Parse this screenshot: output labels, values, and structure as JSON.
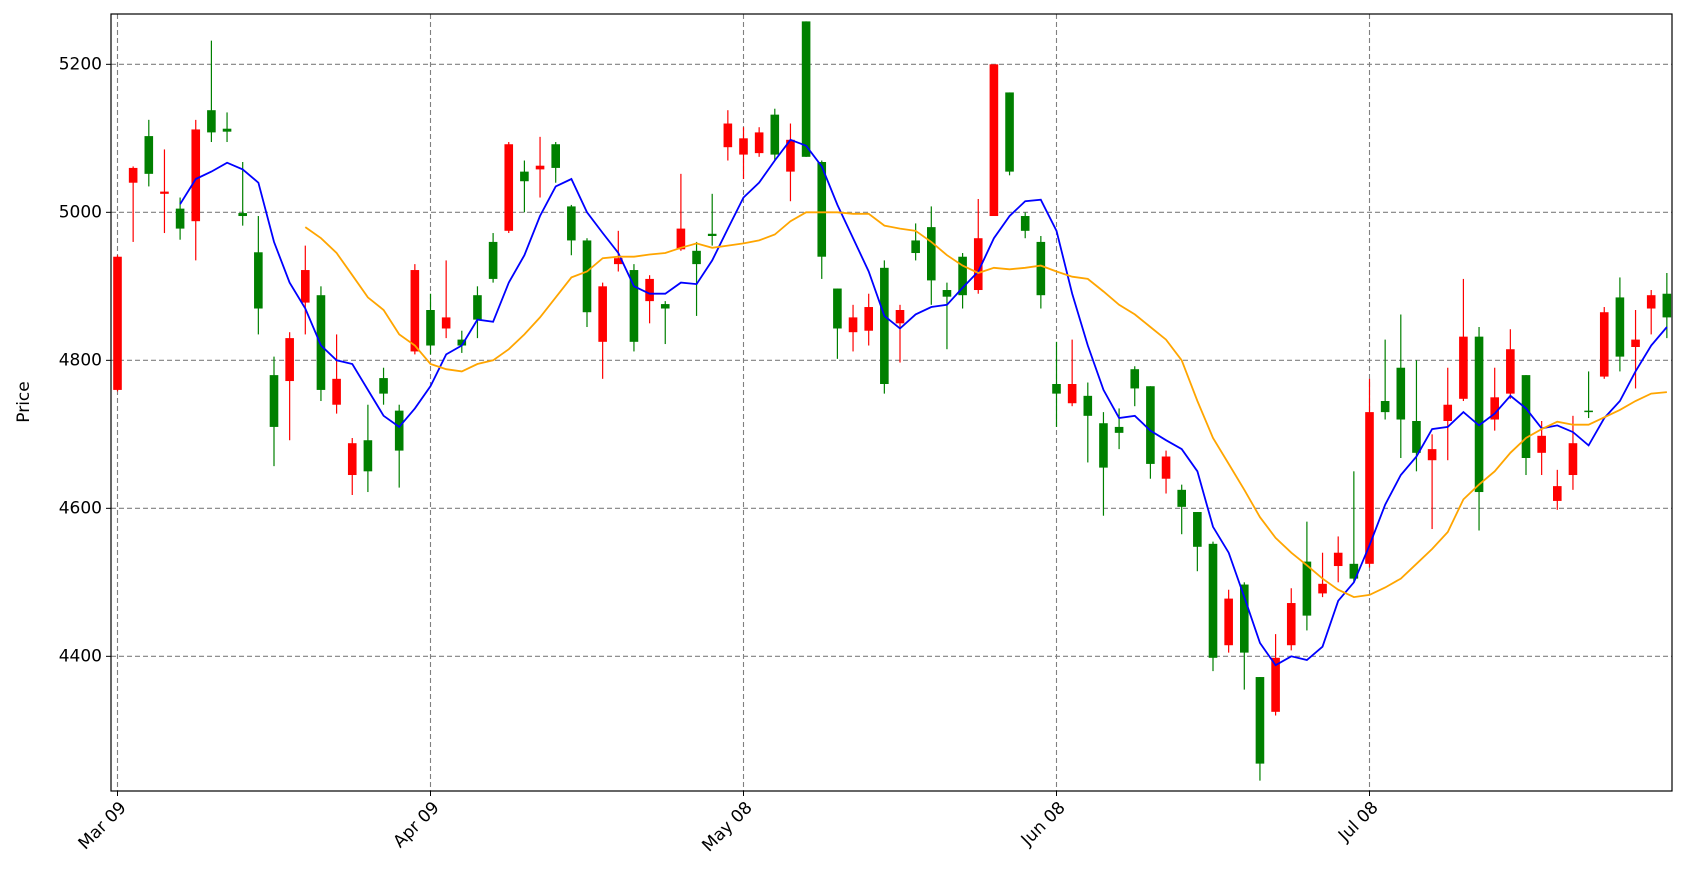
{
  "chart_data": {
    "type": "candlestick",
    "ylabel": "Price",
    "categories": [
      "Mar 09",
      null,
      null,
      null,
      null,
      null,
      null,
      null,
      null,
      null,
      null,
      null,
      null,
      null,
      null,
      null,
      null,
      null,
      null,
      null,
      "Apr 09",
      null,
      null,
      null,
      null,
      null,
      null,
      null,
      null,
      null,
      null,
      null,
      null,
      null,
      null,
      null,
      null,
      null,
      null,
      null,
      "May 08",
      null,
      null,
      null,
      null,
      null,
      null,
      null,
      null,
      null,
      null,
      null,
      null,
      null,
      null,
      null,
      null,
      null,
      null,
      null,
      "Jun 08",
      null,
      null,
      null,
      null,
      null,
      null,
      null,
      null,
      null,
      null,
      null,
      null,
      null,
      null,
      null,
      null,
      null,
      null,
      null,
      "Jul 08",
      null,
      null,
      null,
      null,
      null,
      null,
      null,
      null,
      null,
      null,
      null,
      null,
      null,
      null,
      null,
      null,
      null,
      null,
      null
    ],
    "open": [
      4940,
      5060,
      5052,
      5028,
      4978,
      5112,
      5108,
      5109,
      4995,
      4870,
      4710,
      4830,
      4922,
      4760,
      4775,
      4688,
      4650,
      4755,
      4678,
      4922,
      4820,
      4858,
      4820,
      4855,
      4910,
      5092,
      5042,
      5063,
      5060,
      4962,
      4865,
      4900,
      4938,
      4825,
      4910,
      4870,
      4978,
      4930,
      4968,
      5120,
      5100,
      5108,
      5078,
      5098,
      5075,
      4940,
      4843,
      4858,
      4872,
      4768,
      4868,
      4945,
      4908,
      4886,
      4888,
      4965,
      5200,
      5055,
      4975,
      4888,
      4755,
      4768,
      4725,
      4655,
      4702,
      4762,
      4660,
      4670,
      4602,
      4548,
      4398,
      4478,
      4405,
      4255,
      4398,
      4472,
      4455,
      4498,
      4540,
      4505,
      4730,
      4730,
      4720,
      4675,
      4680,
      4740,
      4832,
      4622,
      4750,
      4815,
      4668,
      4698,
      4630,
      4688,
      4730,
      4865,
      4805,
      4828,
      4888,
      4858
    ],
    "high": [
      4942,
      5062,
      5125,
      5085,
      5020,
      5125,
      5232,
      5135,
      5068,
      4995,
      4805,
      4838,
      4955,
      4900,
      4835,
      4695,
      4740,
      4790,
      4740,
      4930,
      4890,
      4935,
      4840,
      4900,
      4972,
      5095,
      5070,
      5102,
      5095,
      5010,
      4965,
      4905,
      4975,
      4930,
      4915,
      4880,
      5052,
      4960,
      5025,
      5138,
      5115,
      5115,
      5140,
      5120,
      5258,
      5070,
      4897,
      4875,
      4890,
      4935,
      4875,
      4985,
      5008,
      4905,
      4945,
      5018,
      5200,
      5162,
      5000,
      4968,
      4825,
      4828,
      4770,
      4730,
      4735,
      4792,
      4765,
      4678,
      4632,
      4595,
      4555,
      4490,
      4500,
      4372,
      4430,
      4492,
      4582,
      4540,
      4562,
      4650,
      4775,
      4828,
      4862,
      4800,
      4700,
      4790,
      4910,
      4845,
      4790,
      4842,
      4780,
      4718,
      4652,
      4725,
      4785,
      4872,
      4912,
      4868,
      4895,
      4918
    ],
    "low": [
      4758,
      4960,
      5035,
      4972,
      4963,
      4935,
      5095,
      5095,
      4982,
      4835,
      4657,
      4692,
      4835,
      4745,
      4728,
      4618,
      4622,
      4740,
      4628,
      4808,
      4808,
      4830,
      4810,
      4830,
      4905,
      4972,
      5000,
      5020,
      5040,
      4942,
      4845,
      4775,
      4920,
      4812,
      4850,
      4822,
      4948,
      4860,
      4955,
      5070,
      5045,
      5075,
      5070,
      5015,
      5075,
      4910,
      4802,
      4812,
      4820,
      4755,
      4797,
      4935,
      4875,
      4815,
      4870,
      4890,
      4995,
      5050,
      4965,
      4870,
      4710,
      4738,
      4662,
      4590,
      4680,
      4738,
      4640,
      4620,
      4565,
      4515,
      4380,
      4405,
      4355,
      4232,
      4320,
      4408,
      4435,
      4480,
      4500,
      4500,
      4520,
      4720,
      4668,
      4650,
      4572,
      4665,
      4745,
      4570,
      4705,
      4748,
      4645,
      4645,
      4598,
      4625,
      4722,
      4775,
      4785,
      4762,
      4835,
      4830
    ],
    "close": [
      4760,
      5040,
      5103,
      5025,
      5005,
      4988,
      5138,
      5113,
      4999,
      4946,
      4780,
      4772,
      4878,
      4888,
      4740,
      4645,
      4692,
      4776,
      4732,
      4812,
      4868,
      4843,
      4828,
      4888,
      4960,
      4975,
      5055,
      5058,
      5092,
      5008,
      4962,
      4825,
      4930,
      4922,
      4880,
      4876,
      4950,
      4948,
      4971,
      5088,
      5078,
      5080,
      5132,
      5055,
      5258,
      5068,
      4897,
      4838,
      4840,
      4925,
      4850,
      4962,
      4980,
      4895,
      4940,
      4895,
      4995,
      5162,
      4995,
      4960,
      4768,
      4742,
      4752,
      4715,
      4710,
      4788,
      4765,
      4640,
      4625,
      4595,
      4552,
      4415,
      4497,
      4372,
      4325,
      4415,
      4528,
      4485,
      4522,
      4525,
      4525,
      4745,
      4790,
      4718,
      4665,
      4718,
      4748,
      4832,
      4720,
      4755,
      4780,
      4675,
      4610,
      4645,
      4732,
      4778,
      4885,
      4818,
      4870,
      4890
    ],
    "up_color": "green",
    "down_color": "red",
    "moving_averages": [
      {
        "color": "blue",
        "values": [
          null,
          null,
          null,
          null,
          5011,
          5045,
          5055,
          5067,
          5058,
          5040,
          4960,
          4905,
          4870,
          4820,
          4800,
          4795,
          4760,
          4725,
          4710,
          4735,
          4765,
          4808,
          4820,
          4855,
          4852,
          4905,
          4942,
          4995,
          5035,
          5045,
          5000,
          4972,
          4945,
          4900,
          4890,
          4890,
          4905,
          4903,
          4935,
          4978,
          5020,
          5040,
          5070,
          5098,
          5090,
          5062,
          5010,
          4965,
          4920,
          4860,
          4843,
          4862,
          4872,
          4875,
          4898,
          4920,
          4965,
          4995,
          5015,
          5017,
          4975,
          4890,
          4820,
          4760,
          4722,
          4725,
          4705,
          4692,
          4680,
          4650,
          4575,
          4540,
          4480,
          4418,
          4388,
          4400,
          4395,
          4413,
          4475,
          4500,
          4550,
          4605,
          4645,
          4670,
          4707,
          4710,
          4730,
          4712,
          4728,
          4752,
          4735,
          4708,
          4712,
          4703,
          4685,
          4722,
          4745,
          4785,
          4820,
          4845
        ]
      },
      {
        "color": "orange",
        "values": [
          null,
          null,
          null,
          null,
          null,
          null,
          null,
          null,
          null,
          null,
          null,
          null,
          4980,
          4965,
          4945,
          4915,
          4885,
          4868,
          4835,
          4820,
          4795,
          4788,
          4785,
          4795,
          4800,
          4815,
          4835,
          4858,
          4885,
          4912,
          4920,
          4938,
          4940,
          4940,
          4943,
          4945,
          4952,
          4958,
          4952,
          4955,
          4958,
          4962,
          4970,
          4988,
          5000,
          5000,
          5000,
          4998,
          4998,
          4982,
          4978,
          4975,
          4960,
          4942,
          4928,
          4918,
          4925,
          4923,
          4925,
          4928,
          4920,
          4913,
          4910,
          4893,
          4875,
          4862,
          4845,
          4828,
          4800,
          4745,
          4695,
          4660,
          4625,
          4588,
          4560,
          4540,
          4523,
          4505,
          4490,
          4480,
          4483,
          4493,
          4505,
          4525,
          4545,
          4568,
          4612,
          4632,
          4650,
          4675,
          4695,
          4707,
          4717,
          4713,
          4713,
          4723,
          4733,
          4745,
          4755,
          4757
        ]
      }
    ],
    "ylim": [
      4218,
      5268
    ],
    "yticks": [
      4400,
      4600,
      4800,
      5000,
      5200
    ],
    "grid": true
  }
}
